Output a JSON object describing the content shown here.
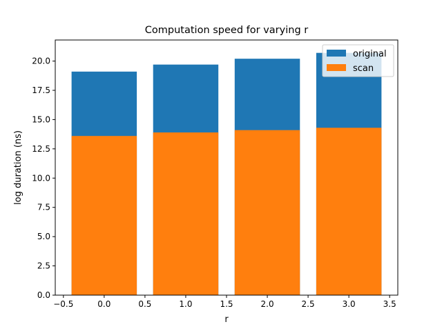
{
  "chart_data": {
    "type": "bar",
    "title": "Computation speed for varying r",
    "xlabel": "r",
    "ylabel": "log duration (ns)",
    "x": [
      0,
      1,
      2,
      3
    ],
    "bar_width": 0.8,
    "xlim": [
      -0.6,
      3.6
    ],
    "ylim": [
      0,
      21.8
    ],
    "xticks": [
      "−0.5",
      "0.0",
      "0.5",
      "1.0",
      "1.5",
      "2.0",
      "2.5",
      "3.0",
      "3.5"
    ],
    "xtick_values": [
      -0.5,
      0.0,
      0.5,
      1.0,
      1.5,
      2.0,
      2.5,
      3.0,
      3.5
    ],
    "yticks": [
      "0.0",
      "2.5",
      "5.0",
      "7.5",
      "10.0",
      "12.5",
      "15.0",
      "17.5",
      "20.0"
    ],
    "ytick_values": [
      0,
      2.5,
      5.0,
      7.5,
      10.0,
      12.5,
      15.0,
      17.5,
      20.0
    ],
    "series": [
      {
        "name": "original",
        "color": "#1f77b4",
        "values": [
          19.1,
          19.7,
          20.2,
          20.7
        ]
      },
      {
        "name": "scan",
        "color": "#ff7f0e",
        "values": [
          13.6,
          13.9,
          14.1,
          14.3
        ]
      }
    ],
    "legend": "top-right",
    "grid": false
  }
}
